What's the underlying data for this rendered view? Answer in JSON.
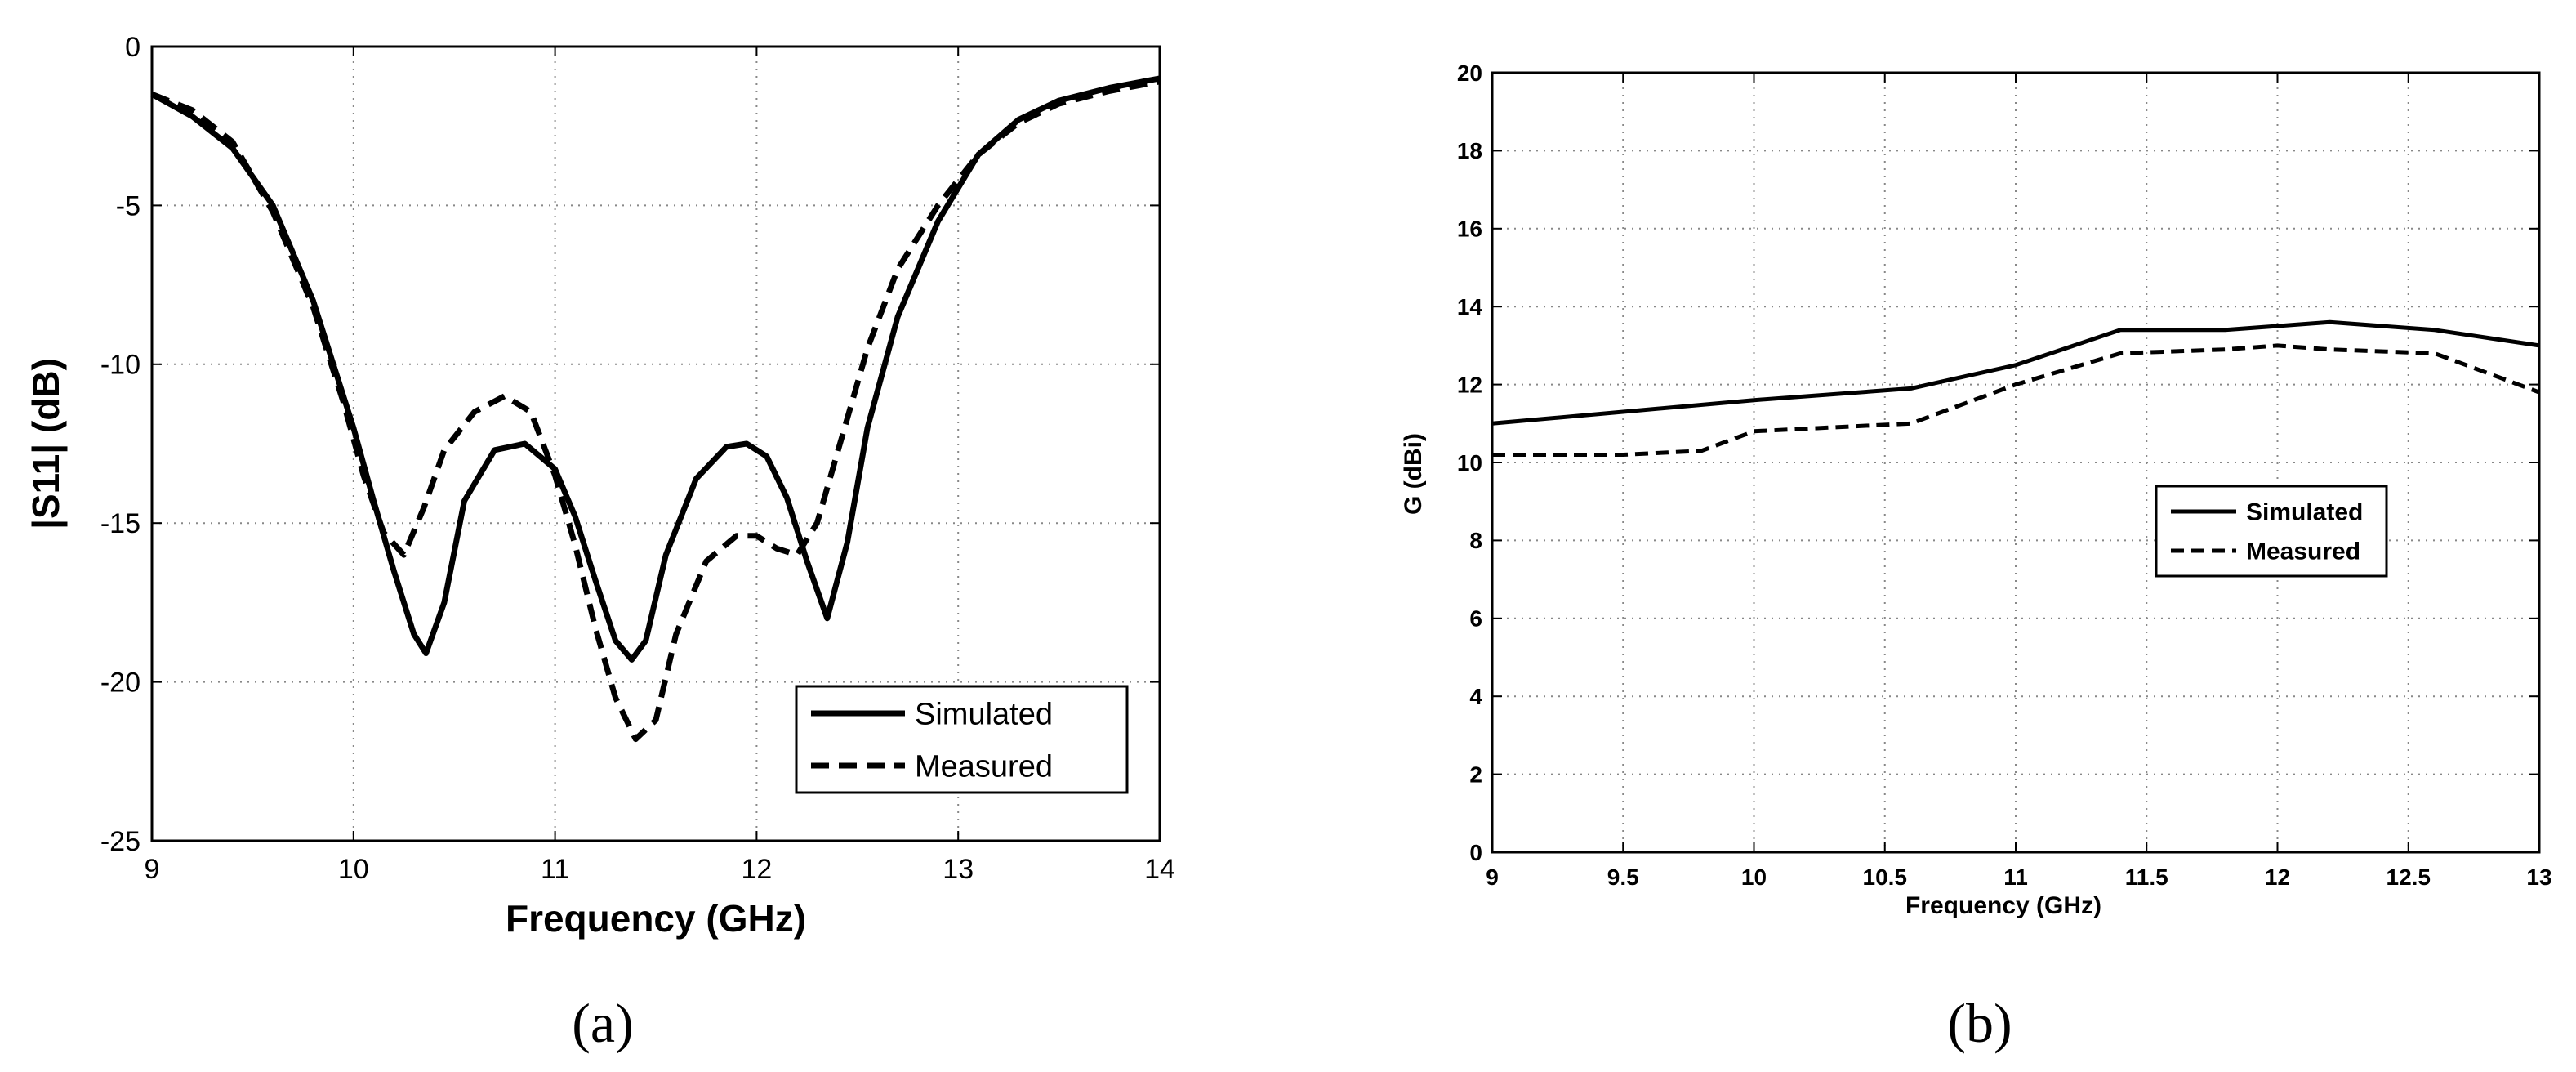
{
  "chart_data": [
    {
      "type": "line",
      "panel_caption": "(a)",
      "xlabel": "Frequency (GHz)",
      "ylabel": "|S11| (dB)",
      "xlim": [
        9,
        14
      ],
      "ylim": [
        -25,
        0
      ],
      "x_ticks": [
        "9",
        "10",
        "11",
        "12",
        "13",
        "14"
      ],
      "y_ticks": [
        "0",
        "-5",
        "-10",
        "-15",
        "-20",
        "-25"
      ],
      "grid": true,
      "legend_position": "bottom-right",
      "series": [
        {
          "name": "Simulated",
          "style": "solid",
          "x": [
            9.0,
            9.2,
            9.4,
            9.6,
            9.8,
            10.0,
            10.1,
            10.2,
            10.3,
            10.36,
            10.45,
            10.55,
            10.7,
            10.85,
            11.0,
            11.1,
            11.2,
            11.3,
            11.38,
            11.45,
            11.55,
            11.7,
            11.85,
            11.95,
            12.05,
            12.15,
            12.25,
            12.35,
            12.45,
            12.55,
            12.7,
            12.9,
            13.1,
            13.3,
            13.5,
            13.75,
            14.0
          ],
          "y": [
            -1.5,
            -2.2,
            -3.2,
            -5.0,
            -8.0,
            -12.0,
            -14.3,
            -16.5,
            -18.5,
            -19.1,
            -17.5,
            -14.3,
            -12.7,
            -12.5,
            -13.3,
            -14.8,
            -16.8,
            -18.7,
            -19.3,
            -18.7,
            -16.0,
            -13.6,
            -12.6,
            -12.5,
            -12.9,
            -14.2,
            -16.2,
            -18.0,
            -15.6,
            -12.0,
            -8.5,
            -5.5,
            -3.4,
            -2.3,
            -1.7,
            -1.3,
            -1.0
          ]
        },
        {
          "name": "Measured",
          "style": "dashed",
          "x": [
            9.0,
            9.2,
            9.4,
            9.6,
            9.8,
            9.95,
            10.05,
            10.15,
            10.25,
            10.35,
            10.45,
            10.6,
            10.75,
            10.88,
            11.0,
            11.1,
            11.2,
            11.3,
            11.4,
            11.5,
            11.6,
            11.75,
            11.9,
            12.0,
            12.1,
            12.2,
            12.3,
            12.4,
            12.55,
            12.7,
            12.9,
            13.1,
            13.3,
            13.5,
            13.75,
            14.0
          ],
          "y": [
            -1.5,
            -2.0,
            -3.0,
            -5.2,
            -8.2,
            -11.2,
            -13.5,
            -15.3,
            -16.0,
            -14.5,
            -12.7,
            -11.5,
            -11.0,
            -11.5,
            -13.5,
            -15.7,
            -18.3,
            -20.5,
            -21.8,
            -21.2,
            -18.5,
            -16.2,
            -15.4,
            -15.4,
            -15.8,
            -16.0,
            -15.0,
            -12.8,
            -9.5,
            -7.0,
            -5.0,
            -3.4,
            -2.4,
            -1.8,
            -1.4,
            -1.1
          ]
        }
      ]
    },
    {
      "type": "line",
      "panel_caption": "(b)",
      "xlabel": "Frequency (GHz)",
      "ylabel": "G (dBi)",
      "xlim": [
        9,
        13
      ],
      "ylim": [
        0,
        20
      ],
      "x_ticks": [
        "9",
        "9.5",
        "10",
        "10.5",
        "11",
        "11.5",
        "12",
        "12.5",
        "13"
      ],
      "y_ticks": [
        "0",
        "2",
        "4",
        "6",
        "8",
        "10",
        "12",
        "14",
        "16",
        "18",
        "20"
      ],
      "grid": true,
      "legend_position": "center-right",
      "series": [
        {
          "name": "Simulated",
          "style": "solid",
          "x": [
            9.0,
            9.5,
            10.0,
            10.6,
            11.0,
            11.4,
            11.8,
            12.2,
            12.6,
            13.0
          ],
          "y": [
            11.0,
            11.3,
            11.6,
            11.9,
            12.5,
            13.4,
            13.4,
            13.6,
            13.4,
            13.0
          ]
        },
        {
          "name": "Measured",
          "style": "dashed",
          "x": [
            9.0,
            9.5,
            9.8,
            10.0,
            10.6,
            11.0,
            11.4,
            11.8,
            12.0,
            12.2,
            12.6,
            13.0
          ],
          "y": [
            10.2,
            10.2,
            10.3,
            10.8,
            11.0,
            12.0,
            12.8,
            12.9,
            13.0,
            12.9,
            12.8,
            11.8
          ]
        }
      ]
    }
  ]
}
